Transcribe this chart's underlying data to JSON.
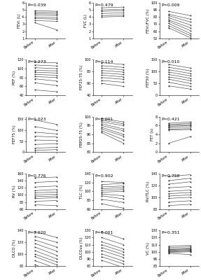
{
  "subplots": [
    {
      "ylabel": "FEV₁ (L)",
      "pval": "P=0.039",
      "ylim": [
        1,
        6
      ],
      "yticks": [
        1,
        2,
        3,
        4,
        5,
        6
      ],
      "pre": [
        4.9,
        4.7,
        4.5,
        4.3,
        4.0,
        3.8,
        3.5,
        3.2
      ],
      "post": [
        4.8,
        4.6,
        4.4,
        4.2,
        3.9,
        3.7,
        3.4,
        2.2
      ]
    },
    {
      "ylabel": "FVC (L)",
      "pval": "P=0.479",
      "ylim": [
        1,
        6
      ],
      "yticks": [
        1,
        2,
        3,
        4,
        5,
        6
      ],
      "pre": [
        5.3,
        5.0,
        4.8,
        4.5,
        4.2,
        4.0
      ],
      "post": [
        5.4,
        5.1,
        4.9,
        4.6,
        4.3,
        4.1
      ]
    },
    {
      "ylabel": "FEV₁/FVC (%)",
      "pval": "P=0.009",
      "ylim": [
        50,
        100
      ],
      "yticks": [
        50,
        60,
        70,
        80,
        90,
        100
      ],
      "pre": [
        88,
        84,
        82,
        79,
        76,
        74,
        71,
        68,
        65
      ],
      "post": [
        82,
        77,
        73,
        69,
        65,
        61,
        57,
        54,
        51
      ]
    },
    {
      "ylabel": "PEF (%)",
      "pval": "P=0.273",
      "ylim": [
        40,
        120
      ],
      "yticks": [
        40,
        60,
        80,
        100,
        120
      ],
      "pre": [
        115,
        108,
        102,
        96,
        92,
        87,
        82,
        77,
        68,
        52
      ],
      "post": [
        113,
        106,
        100,
        95,
        90,
        85,
        80,
        72,
        62,
        48
      ]
    },
    {
      "ylabel": "FEF25-75 (%)",
      "pval": "P=0.114",
      "ylim": [
        40,
        100
      ],
      "yticks": [
        40,
        60,
        80,
        100
      ],
      "pre": [
        95,
        90,
        86,
        82,
        78,
        74,
        70,
        65,
        60
      ],
      "post": [
        92,
        87,
        83,
        79,
        75,
        71,
        67,
        62,
        55
      ]
    },
    {
      "ylabel": "FEF50 (%)",
      "pval": "P=0.010",
      "ylim": [
        0,
        150
      ],
      "yticks": [
        0,
        50,
        100,
        150
      ],
      "pre": [
        130,
        118,
        108,
        98,
        88,
        78,
        68,
        55,
        40
      ],
      "post": [
        115,
        103,
        92,
        82,
        72,
        62,
        50,
        38,
        26
      ]
    },
    {
      "ylabel": "FEF75 (%)",
      "pval": "P=0.023",
      "ylim": [
        0,
        160
      ],
      "yticks": [
        0,
        50,
        100,
        150
      ],
      "pre": [
        145,
        115,
        90,
        72,
        55,
        35,
        18,
        8
      ],
      "post": [
        125,
        98,
        82,
        68,
        52,
        38,
        22,
        12
      ]
    },
    {
      "ylabel": "FBP25-75 (%)",
      "pval": "P=0.001",
      "ylim": [
        80,
        100
      ],
      "yticks": [
        80,
        85,
        90,
        95,
        100
      ],
      "pre": [
        99,
        98,
        97,
        96,
        95,
        94,
        93,
        92,
        91
      ],
      "post": [
        97,
        96,
        95,
        93,
        92,
        90,
        89,
        87,
        85
      ]
    },
    {
      "ylabel": "FET (s)",
      "pval": "P=0.421",
      "ylim": [
        0,
        8
      ],
      "yticks": [
        0,
        2,
        4,
        6,
        8
      ],
      "pre": [
        6.5,
        6.2,
        6.0,
        5.8,
        5.5,
        5.2,
        5.0,
        2.0
      ],
      "post": [
        6.8,
        6.5,
        6.2,
        6.0,
        5.7,
        5.3,
        5.1,
        3.5
      ]
    },
    {
      "ylabel": "RV (%)",
      "pval": "P=0.776",
      "ylim": [
        60,
        160
      ],
      "yticks": [
        60,
        80,
        100,
        120,
        140,
        160
      ],
      "pre": [
        148,
        135,
        122,
        112,
        106,
        100,
        95,
        90,
        82,
        72
      ],
      "post": [
        150,
        138,
        125,
        115,
        108,
        102,
        97,
        92,
        84,
        70
      ]
    },
    {
      "ylabel": "TLC (%)",
      "pval": "P=0.902",
      "ylim": [
        60,
        140
      ],
      "yticks": [
        60,
        80,
        100,
        120,
        140
      ],
      "pre": [
        122,
        115,
        110,
        106,
        102,
        98,
        94,
        90,
        82,
        72
      ],
      "post": [
        120,
        118,
        112,
        108,
        104,
        100,
        90,
        83,
        75,
        62
      ]
    },
    {
      "ylabel": "RV/TLC (%)",
      "pval": "P=0.758",
      "ylim": [
        80,
        140
      ],
      "yticks": [
        80,
        100,
        120,
        140
      ],
      "pre": [
        135,
        128,
        122,
        116,
        110,
        106,
        102,
        98,
        92,
        86
      ],
      "post": [
        138,
        132,
        126,
        118,
        112,
        108,
        104,
        100,
        94,
        88
      ]
    },
    {
      "ylabel": "DLCO (%)",
      "pval": "P=0.020",
      "ylim": [
        80,
        140
      ],
      "yticks": [
        80,
        100,
        120,
        140
      ],
      "pre": [
        138,
        130,
        124,
        118,
        112,
        106,
        100,
        96,
        89,
        82
      ],
      "post": [
        128,
        120,
        112,
        105,
        98,
        92,
        87,
        82,
        76,
        70
      ]
    },
    {
      "ylabel": "DLCOva (%)",
      "pval": "P=0.001",
      "ylim": [
        80,
        130
      ],
      "yticks": [
        80,
        90,
        100,
        110,
        120,
        130
      ],
      "pre": [
        128,
        120,
        114,
        110,
        106,
        102,
        97,
        93,
        88
      ],
      "post": [
        118,
        110,
        104,
        100,
        96,
        92,
        87,
        83,
        78
      ]
    },
    {
      "ylabel": "VC (%)",
      "pval": "P=0.351",
      "ylim": [
        80,
        130
      ],
      "yticks": [
        80,
        90,
        100,
        110,
        120,
        130
      ],
      "pre": [
        108,
        106,
        104,
        103,
        102,
        101,
        100,
        99,
        98
      ],
      "post": [
        109,
        107,
        105,
        104,
        103,
        102,
        101,
        100,
        96
      ]
    }
  ],
  "xlabel_pre": "Before",
  "xlabel_post": "After",
  "line_color": "#444444",
  "marker_color": "#222222",
  "bg_color": "#ffffff",
  "pval_fontsize": 4.5,
  "label_fontsize": 3.8,
  "tick_fontsize": 3.5
}
